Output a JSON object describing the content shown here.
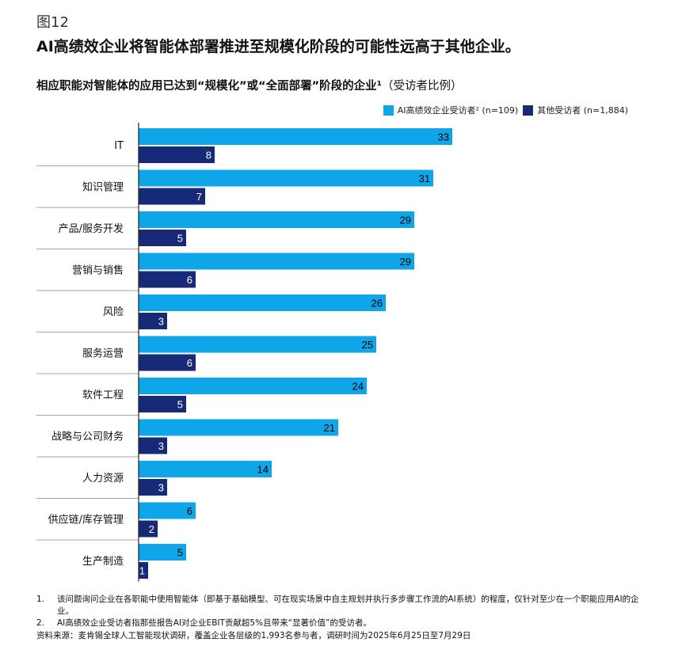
{
  "figure_label": "图12",
  "headline": "AI高绩效企业将智能体部署推进至规模化阶段的可能性远高于其他企业。",
  "colors": {
    "high": "#0ea5e9",
    "other": "#162a78",
    "divider": "#888888",
    "axis": "#222222"
  },
  "chart_data": {
    "type": "bar",
    "orientation": "horizontal",
    "title": "相应职能对智能体的应用已达到“规模化”或“全面部署”阶段的企业¹",
    "title_unit": "（受访者比例）",
    "categories": [
      "IT",
      "知识管理",
      "产品/服务开发",
      "营销与销售",
      "风险",
      "服务运营",
      "软件工程",
      "战略与公司财务",
      "人力资源",
      "供应链/库存管理",
      "生产制造"
    ],
    "series": [
      {
        "name": "AI高绩效企业受访者² (n=109)",
        "values": [
          33,
          31,
          29,
          29,
          26,
          25,
          24,
          21,
          14,
          6,
          5
        ]
      },
      {
        "name": "其他受访者 (n=1,884)",
        "values": [
          8,
          7,
          5,
          6,
          3,
          6,
          5,
          3,
          3,
          2,
          1
        ]
      }
    ],
    "legend": "top-right",
    "data_labels": true,
    "grid": false
  },
  "footnotes": [
    {
      "num": "1.",
      "text": "该问题询问企业在各职能中使用智能体（即基于基础模型、可在现实场景中自主规划并执行多步骤工作流的AI系统）的程度，仅针对至少在一个职能应用AI的企业。"
    },
    {
      "num": "2.",
      "text": "AI高绩效企业受访者指那些报告AI对企业EBIT贡献超5%且带来“显著价值”的受访者。"
    }
  ],
  "source": "资料来源：麦肯锡全球人工智能现状调研，覆盖企业各层级的1,993名参与者，调研时间为2025年6月25日至7月29日"
}
